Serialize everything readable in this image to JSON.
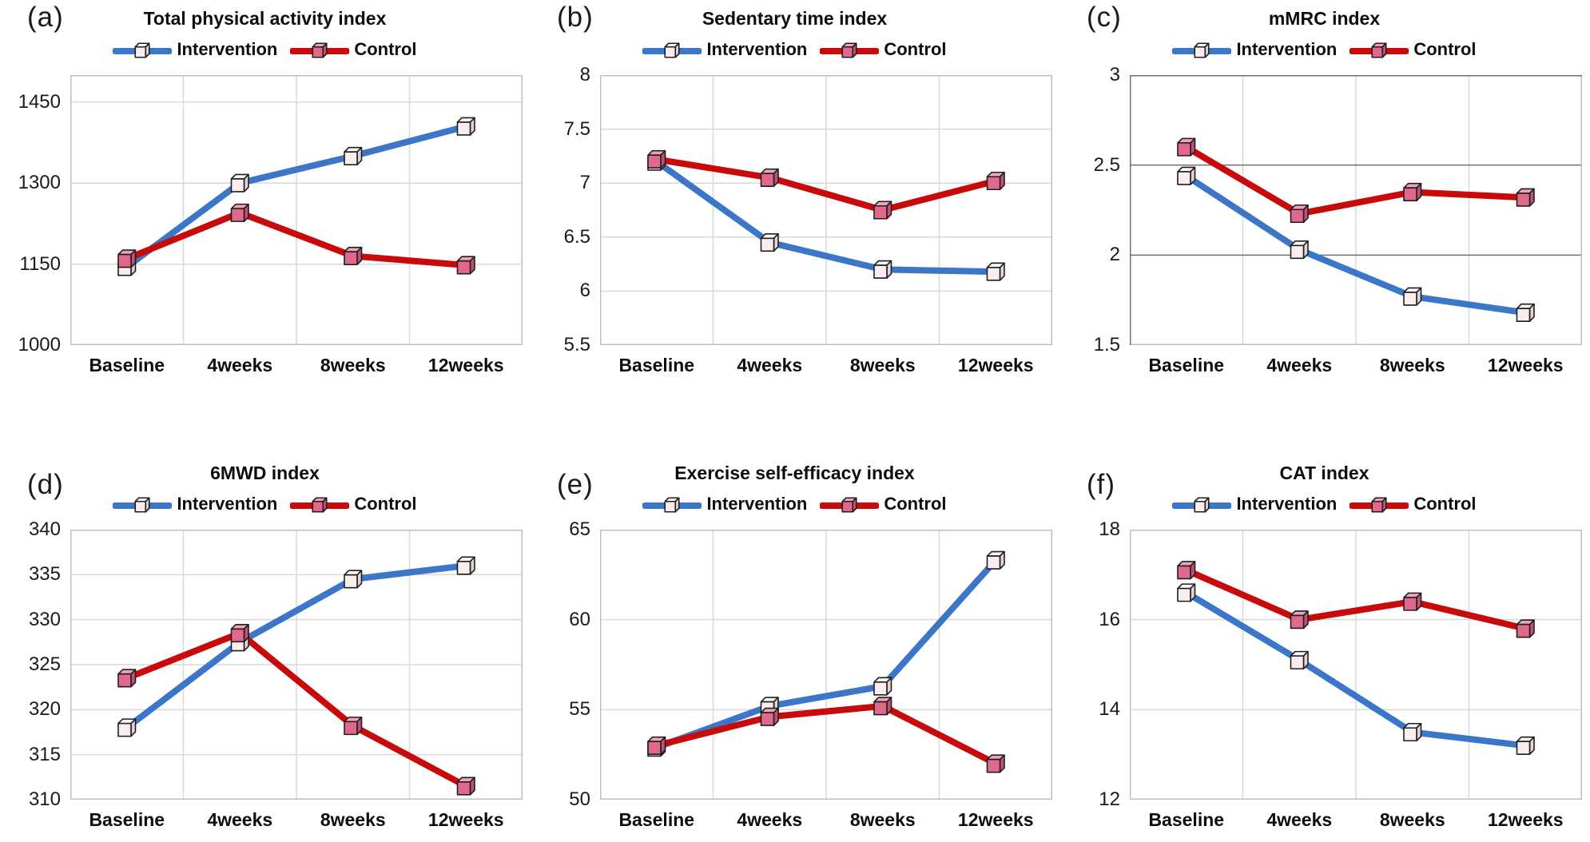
{
  "figure": {
    "legend": {
      "intervention_label": "Intervention",
      "control_label": "Control"
    },
    "colors": {
      "intervention_line": "#3b76c8",
      "control_line": "#c80a0a",
      "intervention_marker_front": "#faedee",
      "intervention_marker_top": "#fdf7f7",
      "intervention_marker_side": "#e3d3d6",
      "control_marker_front": "#e0688a",
      "control_marker_top": "#efa3b8",
      "control_marker_side": "#c2517a",
      "marker_outline": "#1f1f1f",
      "grid": "#d9d9d9",
      "grid_dark": "#707070",
      "border": "#bfbfbf",
      "text": "#0d0d0d"
    }
  },
  "chart_data": [
    {
      "panel_label": "(a)",
      "title": "Total physical activity index",
      "type": "line",
      "categories": [
        "Baseline",
        "4weeks",
        "8weeks",
        "12weeks"
      ],
      "series": [
        {
          "name": "Intervention",
          "values": [
            1145,
            1300,
            1350,
            1405
          ]
        },
        {
          "name": "Control",
          "values": [
            1160,
            1245,
            1165,
            1148
          ]
        }
      ],
      "ylim": [
        1000,
        1500
      ],
      "yticks": [
        1000,
        1150,
        1300,
        1450
      ],
      "dark_hgrid": false,
      "grid": true,
      "legend_position": "top"
    },
    {
      "panel_label": "(b)",
      "title": "Sedentary time index",
      "type": "line",
      "categories": [
        "Baseline",
        "4weeks",
        "8weeks",
        "12weeks"
      ],
      "series": [
        {
          "name": "Intervention",
          "values": [
            7.2,
            6.45,
            6.2,
            6.18
          ]
        },
        {
          "name": "Control",
          "values": [
            7.22,
            7.05,
            6.75,
            7.02
          ]
        }
      ],
      "ylim": [
        5.5,
        8
      ],
      "yticks": [
        5.5,
        6,
        6.5,
        7,
        7.5,
        8
      ],
      "dark_hgrid": false,
      "grid": true,
      "legend_position": "top"
    },
    {
      "panel_label": "(c)",
      "title": "mMRC index",
      "type": "line",
      "categories": [
        "Baseline",
        "4weeks",
        "8weeks",
        "12weeks"
      ],
      "series": [
        {
          "name": "Intervention",
          "values": [
            2.44,
            2.03,
            1.77,
            1.68
          ]
        },
        {
          "name": "Control",
          "values": [
            2.6,
            2.23,
            2.35,
            2.32
          ]
        }
      ],
      "ylim": [
        1.5,
        3
      ],
      "yticks": [
        1.5,
        2,
        2.5,
        3
      ],
      "dark_hgrid": true,
      "grid": true,
      "legend_position": "top"
    },
    {
      "panel_label": "(d)",
      "title": "6MWD index",
      "type": "line",
      "categories": [
        "Baseline",
        "4weeks",
        "8weeks",
        "12weeks"
      ],
      "series": [
        {
          "name": "Intervention",
          "values": [
            318,
            327.5,
            334.5,
            336
          ]
        },
        {
          "name": "Control",
          "values": [
            323.5,
            328.5,
            318.2,
            311.5
          ]
        }
      ],
      "ylim": [
        310,
        340
      ],
      "yticks": [
        310,
        315,
        320,
        325,
        330,
        335,
        340
      ],
      "dark_hgrid": false,
      "grid": true,
      "legend_position": "top"
    },
    {
      "panel_label": "(e)",
      "title": "Exercise self-efficacy index",
      "type": "line",
      "categories": [
        "Baseline",
        "4weeks",
        "8weeks",
        "12weeks"
      ],
      "series": [
        {
          "name": "Intervention",
          "values": [
            52.9,
            55.2,
            56.3,
            63.3
          ]
        },
        {
          "name": "Control",
          "values": [
            53,
            54.6,
            55.2,
            52
          ]
        }
      ],
      "ylim": [
        50,
        65
      ],
      "yticks": [
        50,
        55,
        60,
        65
      ],
      "dark_hgrid": false,
      "grid": true,
      "legend_position": "top"
    },
    {
      "panel_label": "(f)",
      "title": "CAT index",
      "type": "line",
      "categories": [
        "Baseline",
        "4weeks",
        "8weeks",
        "12weeks"
      ],
      "series": [
        {
          "name": "Intervention",
          "values": [
            16.6,
            15.1,
            13.5,
            13.2
          ]
        },
        {
          "name": "Control",
          "values": [
            17.1,
            16,
            16.4,
            15.8
          ]
        }
      ],
      "ylim": [
        12,
        18
      ],
      "yticks": [
        12,
        14,
        16,
        18
      ],
      "dark_hgrid": false,
      "grid": true,
      "legend_position": "top"
    }
  ]
}
